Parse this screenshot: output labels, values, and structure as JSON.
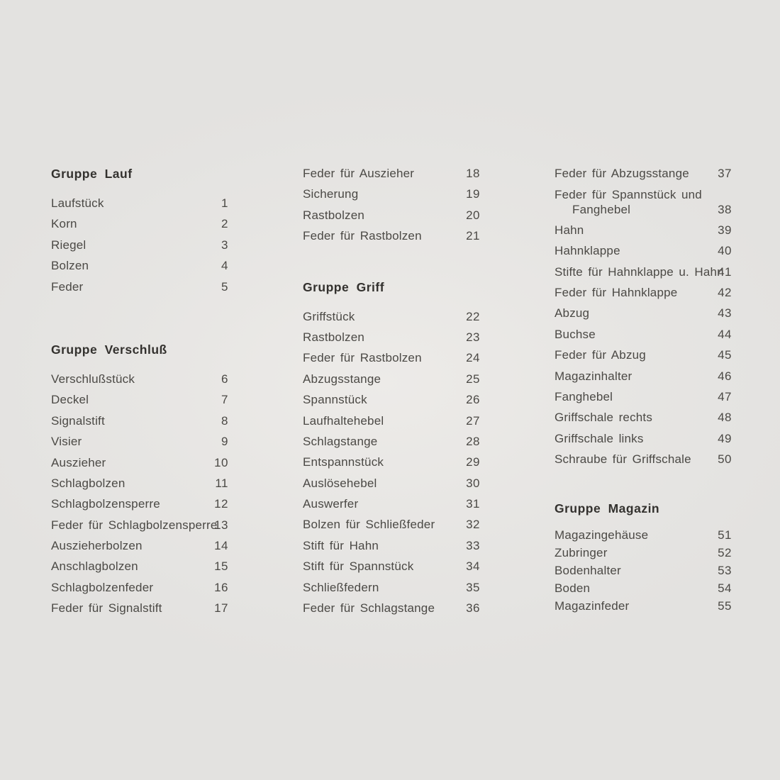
{
  "document": {
    "language": "de",
    "background_color": "#e3e2e0",
    "text_color": "#4b4945",
    "header_color": "#33312e",
    "columns": [
      {
        "sections": [
          {
            "header": "Gruppe Lauf",
            "items": [
              {
                "label": "Laufstück",
                "num": "1"
              },
              {
                "label": "Korn",
                "num": "2"
              },
              {
                "label": "Riegel",
                "num": "3"
              },
              {
                "label": "Bolzen",
                "num": "4"
              },
              {
                "label": "Feder",
                "num": "5"
              }
            ]
          },
          {
            "header": "Gruppe Verschluß",
            "items": [
              {
                "label": "Verschlußstück",
                "num": "6"
              },
              {
                "label": "Deckel",
                "num": "7"
              },
              {
                "label": "Signalstift",
                "num": "8"
              },
              {
                "label": "Visier",
                "num": "9"
              },
              {
                "label": "Auszieher",
                "num": "10"
              },
              {
                "label": "Schlagbolzen",
                "num": "11"
              },
              {
                "label": "Schlagbolzensperre",
                "num": "12"
              },
              {
                "label": "Feder für Schlagbolzensperre",
                "num": "13"
              },
              {
                "label": "Auszieherbolzen",
                "num": "14"
              },
              {
                "label": "Anschlagbolzen",
                "num": "15"
              },
              {
                "label": "Schlagbolzenfeder",
                "num": "16"
              },
              {
                "label": "Feder für Signalstift",
                "num": "17"
              }
            ]
          }
        ]
      },
      {
        "sections": [
          {
            "header": null,
            "items": [
              {
                "label": "Feder für Auszieher",
                "num": "18"
              },
              {
                "label": "Sicherung",
                "num": "19"
              },
              {
                "label": "Rastbolzen",
                "num": "20"
              },
              {
                "label": "Feder für Rastbolzen",
                "num": "21"
              }
            ]
          },
          {
            "header": "Gruppe Griff",
            "items": [
              {
                "label": "Griffstück",
                "num": "22"
              },
              {
                "label": "Rastbolzen",
                "num": "23"
              },
              {
                "label": "Feder für Rastbolzen",
                "num": "24"
              },
              {
                "label": "Abzugsstange",
                "num": "25"
              },
              {
                "label": "Spannstück",
                "num": "26"
              },
              {
                "label": "Laufhaltehebel",
                "num": "27"
              },
              {
                "label": "Schlagstange",
                "num": "28"
              },
              {
                "label": "Entspannstück",
                "num": "29"
              },
              {
                "label": "Auslösehebel",
                "num": "30"
              },
              {
                "label": "Auswerfer",
                "num": "31"
              },
              {
                "label": "Bolzen für Schließfeder",
                "num": "32"
              },
              {
                "label": "Stift für Hahn",
                "num": "33"
              },
              {
                "label": "Stift für Spannstück",
                "num": "34"
              },
              {
                "label": "Schließfedern",
                "num": "35"
              },
              {
                "label": "Feder für Schlagstange",
                "num": "36"
              }
            ]
          }
        ]
      },
      {
        "sections": [
          {
            "header": null,
            "items": [
              {
                "label": "Feder für Abzugsstange",
                "num": "37"
              },
              {
                "label": "Feder für Spannstück und",
                "label2": "Fanghebel",
                "num": "38"
              },
              {
                "label": "Hahn",
                "num": "39"
              },
              {
                "label": "Hahnklappe",
                "num": "40"
              },
              {
                "label": "Stifte für Hahnklappe u. Hahn",
                "num": "41"
              },
              {
                "label": "Feder für Hahnklappe",
                "num": "42"
              },
              {
                "label": "Abzug",
                "num": "43"
              },
              {
                "label": "Buchse",
                "num": "44"
              },
              {
                "label": "Feder für Abzug",
                "num": "45"
              },
              {
                "label": "Magazinhalter",
                "num": "46"
              },
              {
                "label": "Fanghebel",
                "num": "47"
              },
              {
                "label": "Griffschale rechts",
                "num": "48"
              },
              {
                "label": "Griffschale links",
                "num": "49"
              },
              {
                "label": "Schraube für Griffschale",
                "num": "50"
              }
            ]
          },
          {
            "header": "Gruppe Magazin",
            "tight": true,
            "items": [
              {
                "label": "Magazingehäuse",
                "num": "51"
              },
              {
                "label": "Zubringer",
                "num": "52"
              },
              {
                "label": "Bodenhalter",
                "num": "53"
              },
              {
                "label": "Boden",
                "num": "54"
              },
              {
                "label": "Magazinfeder",
                "num": "55"
              }
            ]
          }
        ]
      }
    ]
  }
}
